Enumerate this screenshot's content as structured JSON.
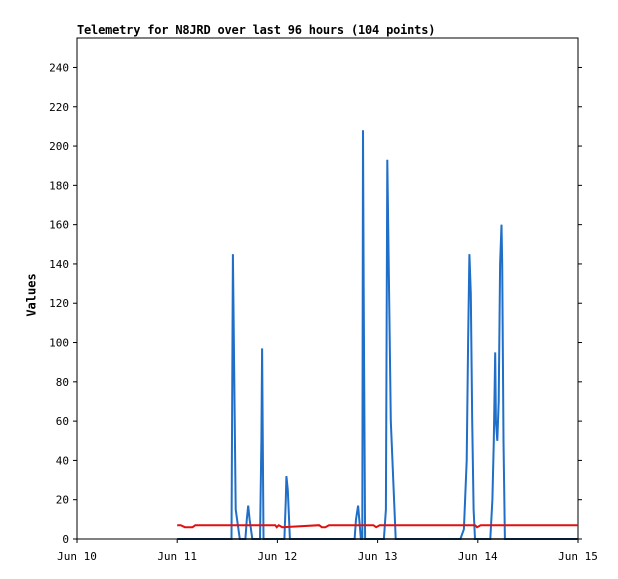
{
  "chart_data": {
    "type": "line",
    "title": "Telemetry for N8JRD over last 96 hours (104 points)",
    "xlabel": "",
    "ylabel": "Values",
    "ylim": [
      0,
      255
    ],
    "xlim": [
      "Jun 10 00:00",
      "Jun 15 00:00"
    ],
    "yticks": [
      0,
      20,
      40,
      60,
      80,
      100,
      120,
      140,
      160,
      180,
      200,
      220,
      240
    ],
    "xticks": [
      "Jun 10",
      "Jun 11",
      "Jun 12",
      "Jun 13",
      "Jun 14",
      "Jun 15"
    ],
    "grid": false,
    "colors": {
      "series_blue": "#1f6ec7",
      "series_red": "#e01010",
      "baseline": "#000000"
    },
    "series": [
      {
        "x": [
          "Jun 11 00:00",
          "Jun 11 13:00",
          "Jun 11 13:20",
          "Jun 11 13:40",
          "Jun 11 14:00",
          "Jun 11 15:00",
          "Jun 11 16:20",
          "Jun 11 16:40",
          "Jun 11 17:00",
          "Jun 11 17:20",
          "Jun 11 18:00",
          "Jun 11 19:50",
          "Jun 11 20:10",
          "Jun 11 20:20",
          "Jun 11 20:40",
          "Jun 12 00:00",
          "Jun 12 01:40",
          "Jun 12 02:00",
          "Jun 12 02:10",
          "Jun 12 02:30",
          "Jun 12 03:00",
          "Jun 12 17:00",
          "Jun 12 18:30",
          "Jun 12 18:50",
          "Jun 12 19:20",
          "Jun 12 20:00",
          "Jun 12 20:10",
          "Jun 12 20:20",
          "Jun 12 20:30",
          "Jun 12 20:40",
          "Jun 12 21:00",
          "Jun 12 22:10",
          "Jun 13 00:00",
          "Jun 13 01:30",
          "Jun 13 02:00",
          "Jun 13 02:20",
          "Jun 13 02:40",
          "Jun 13 03:10",
          "Jun 13 04:20",
          "Jun 13 05:00",
          "Jun 13 05:20",
          "Jun 13 06:00",
          "Jun 13 19:50",
          "Jun 13 20:40",
          "Jun 13 21:20",
          "Jun 13 21:40",
          "Jun 13 22:00",
          "Jun 13 22:20",
          "Jun 13 22:40",
          "Jun 13 23:00",
          "Jun 13 23:20",
          "Jun 14 00:00",
          "Jun 14 03:00",
          "Jun 14 03:30",
          "Jun 14 03:50",
          "Jun 14 04:10",
          "Jun 14 04:20",
          "Jun 14 04:40",
          "Jun 14 05:00",
          "Jun 14 05:20",
          "Jun 14 05:40",
          "Jun 14 05:50",
          "Jun 14 06:10",
          "Jun 14 06:30",
          "Jun 14 06:50",
          "Jun 14 07:20",
          "Jun 14 07:40",
          "Jun 15 00:00"
        ],
        "values": [
          0,
          0,
          145,
          80,
          15,
          0,
          0,
          10,
          17,
          10,
          0,
          0,
          50,
          97,
          0,
          0,
          0,
          20,
          32,
          25,
          0,
          0,
          0,
          10,
          17,
          0,
          0,
          0,
          208,
          125,
          0,
          0,
          0,
          0,
          15,
          193,
          140,
          60,
          0,
          0,
          0,
          0,
          0,
          5,
          40,
          100,
          145,
          125,
          60,
          15,
          0,
          0,
          0,
          20,
          50,
          95,
          60,
          50,
          70,
          140,
          160,
          140,
          50,
          0,
          0,
          0,
          0,
          0
        ]
      },
      {
        "x": [
          "Jun 11 00:00",
          "Jun 11 00:50",
          "Jun 11 01:50",
          "Jun 11 03:40",
          "Jun 11 04:20",
          "Jun 11 23:30",
          "Jun 11 23:50",
          "Jun 12 00:20",
          "Jun 12 01:10",
          "Jun 12 10:00",
          "Jun 12 10:40",
          "Jun 12 11:30",
          "Jun 12 12:20",
          "Jun 12 23:00",
          "Jun 12 23:40",
          "Jun 13 00:30",
          "Jun 13 07:00",
          "Jun 13 23:20",
          "Jun 13 23:50",
          "Jun 14 00:40",
          "Jun 15 00:00"
        ],
        "values": [
          7,
          7,
          6,
          6,
          7,
          7,
          6,
          7,
          6,
          7,
          6,
          6,
          7,
          7,
          6,
          7,
          7,
          7,
          6,
          7,
          7
        ]
      },
      {
        "x": [
          "Jun 11 00:00",
          "Jun 15 00:00"
        ],
        "values": [
          0,
          0
        ]
      }
    ]
  }
}
